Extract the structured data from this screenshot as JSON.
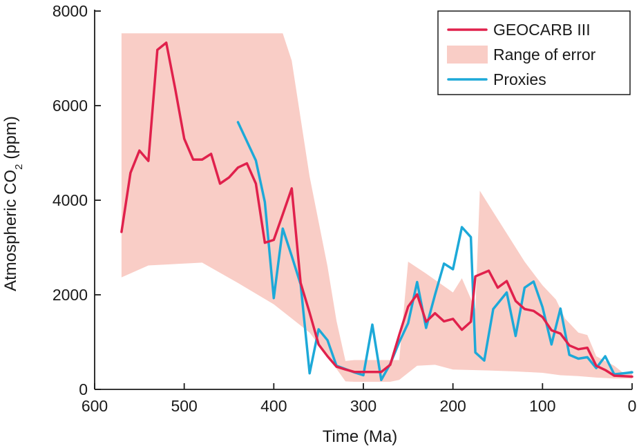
{
  "chart_data": {
    "type": "line",
    "title": "",
    "xlabel": "Time (Ma)",
    "ylabel_main": "Atmospheric CO",
    "ylabel_sub": "2",
    "ylabel_suffix": " (ppm)",
    "xlim": [
      600,
      0
    ],
    "ylim": [
      0,
      8000
    ],
    "x_ticks": [
      600,
      500,
      400,
      300,
      200,
      100,
      0
    ],
    "y_ticks": [
      0,
      2000,
      4000,
      6000,
      8000
    ],
    "legend_position": "top-right",
    "colors": {
      "geocarb": "#e0214c",
      "error": "#f9cdc6",
      "proxies": "#1da9d8",
      "axis": "#1a1a1a"
    },
    "legend": [
      {
        "key": "geocarb",
        "label": "GEOCARB III",
        "kind": "line"
      },
      {
        "key": "error",
        "label": "Range of error",
        "kind": "band"
      },
      {
        "key": "proxies",
        "label": "Proxies",
        "kind": "line"
      }
    ],
    "error_band": {
      "name": "Range of error",
      "upper": [
        [
          570,
          7530
        ],
        [
          390,
          7530
        ],
        [
          380,
          6950
        ],
        [
          360,
          4500
        ],
        [
          340,
          2600
        ],
        [
          330,
          1450
        ],
        [
          320,
          600
        ],
        [
          310,
          620
        ],
        [
          260,
          620
        ],
        [
          250,
          2700
        ],
        [
          230,
          2450
        ],
        [
          200,
          2050
        ],
        [
          190,
          2350
        ],
        [
          175,
          1700
        ],
        [
          170,
          4200
        ],
        [
          160,
          3900
        ],
        [
          140,
          3300
        ],
        [
          120,
          2700
        ],
        [
          100,
          2200
        ],
        [
          85,
          1900
        ],
        [
          75,
          1500
        ],
        [
          60,
          1200
        ],
        [
          50,
          1150
        ],
        [
          40,
          700
        ],
        [
          20,
          500
        ],
        [
          10,
          350
        ],
        [
          0,
          400
        ]
      ],
      "lower": [
        [
          0,
          230
        ],
        [
          20,
          230
        ],
        [
          40,
          250
        ],
        [
          60,
          280
        ],
        [
          80,
          300
        ],
        [
          100,
          350
        ],
        [
          130,
          380
        ],
        [
          160,
          400
        ],
        [
          200,
          420
        ],
        [
          220,
          520
        ],
        [
          240,
          500
        ],
        [
          260,
          200
        ],
        [
          270,
          160
        ],
        [
          310,
          160
        ],
        [
          320,
          170
        ],
        [
          340,
          700
        ],
        [
          360,
          1200
        ],
        [
          400,
          1800
        ],
        [
          440,
          2250
        ],
        [
          480,
          2680
        ],
        [
          540,
          2620
        ],
        [
          570,
          2370
        ]
      ]
    },
    "series": [
      {
        "name": "GEOCARB III",
        "key": "geocarb",
        "points": [
          [
            570,
            3330
          ],
          [
            560,
            4580
          ],
          [
            550,
            5050
          ],
          [
            540,
            4830
          ],
          [
            530,
            7180
          ],
          [
            520,
            7330
          ],
          [
            510,
            6350
          ],
          [
            500,
            5300
          ],
          [
            490,
            4860
          ],
          [
            480,
            4860
          ],
          [
            470,
            4980
          ],
          [
            460,
            4350
          ],
          [
            450,
            4480
          ],
          [
            440,
            4690
          ],
          [
            430,
            4780
          ],
          [
            420,
            4350
          ],
          [
            410,
            3100
          ],
          [
            400,
            3160
          ],
          [
            390,
            3700
          ],
          [
            380,
            4250
          ],
          [
            370,
            2250
          ],
          [
            360,
            1620
          ],
          [
            350,
            950
          ],
          [
            340,
            700
          ],
          [
            330,
            480
          ],
          [
            320,
            420
          ],
          [
            310,
            370
          ],
          [
            300,
            370
          ],
          [
            290,
            370
          ],
          [
            280,
            370
          ],
          [
            270,
            520
          ],
          [
            260,
            1150
          ],
          [
            250,
            1750
          ],
          [
            240,
            2010
          ],
          [
            230,
            1430
          ],
          [
            220,
            1610
          ],
          [
            210,
            1440
          ],
          [
            200,
            1490
          ],
          [
            190,
            1260
          ],
          [
            180,
            1430
          ],
          [
            175,
            2390
          ],
          [
            160,
            2510
          ],
          [
            150,
            2150
          ],
          [
            140,
            2290
          ],
          [
            130,
            1870
          ],
          [
            120,
            1700
          ],
          [
            110,
            1660
          ],
          [
            100,
            1530
          ],
          [
            90,
            1250
          ],
          [
            80,
            1180
          ],
          [
            70,
            930
          ],
          [
            60,
            850
          ],
          [
            50,
            880
          ],
          [
            40,
            500
          ],
          [
            30,
            410
          ],
          [
            20,
            290
          ],
          [
            10,
            280
          ],
          [
            0,
            270
          ]
        ]
      },
      {
        "name": "Proxies",
        "key": "proxies",
        "points": [
          [
            440,
            5650
          ],
          [
            420,
            4840
          ],
          [
            410,
            3960
          ],
          [
            400,
            1930
          ],
          [
            390,
            3400
          ],
          [
            380,
            2820
          ],
          [
            370,
            2220
          ],
          [
            360,
            340
          ],
          [
            350,
            1270
          ],
          [
            340,
            1040
          ],
          [
            330,
            500
          ],
          [
            310,
            360
          ],
          [
            300,
            300
          ],
          [
            290,
            1370
          ],
          [
            280,
            200
          ],
          [
            270,
            540
          ],
          [
            260,
            1000
          ],
          [
            250,
            1400
          ],
          [
            240,
            2270
          ],
          [
            230,
            1300
          ],
          [
            220,
            2000
          ],
          [
            210,
            2660
          ],
          [
            200,
            2540
          ],
          [
            190,
            3430
          ],
          [
            180,
            3220
          ],
          [
            175,
            780
          ],
          [
            165,
            610
          ],
          [
            155,
            1700
          ],
          [
            140,
            2050
          ],
          [
            130,
            1130
          ],
          [
            120,
            2150
          ],
          [
            110,
            2280
          ],
          [
            100,
            1740
          ],
          [
            90,
            950
          ],
          [
            80,
            1710
          ],
          [
            70,
            730
          ],
          [
            60,
            650
          ],
          [
            50,
            680
          ],
          [
            40,
            450
          ],
          [
            30,
            700
          ],
          [
            20,
            320
          ],
          [
            10,
            340
          ],
          [
            0,
            360
          ]
        ]
      }
    ]
  }
}
